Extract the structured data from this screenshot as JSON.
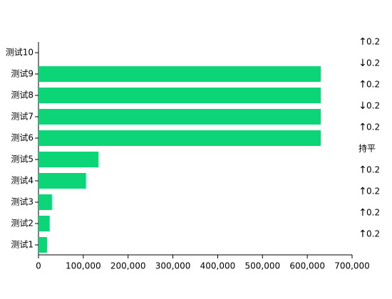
{
  "chart_data": {
    "type": "barh",
    "categories": [
      "测试1",
      "测试2",
      "测试3",
      "测试4",
      "测试5",
      "测试6",
      "测试7",
      "测试8",
      "测试9",
      "测试10"
    ],
    "values": [
      19000,
      25000,
      30000,
      106000,
      134000,
      630000,
      630000,
      630000,
      630000,
      0
    ],
    "color": "#0bd577",
    "xlim": [
      0,
      700000
    ],
    "xticks": [
      0,
      {
        "value": 100000,
        "label": "100,000"
      },
      {
        "value": 200000,
        "label": "200,000"
      },
      {
        "value": 300000,
        "label": "300,000"
      },
      {
        "value": 400000,
        "label": "400,000"
      },
      {
        "value": 500000,
        "label": "500,000"
      },
      {
        "value": 600000,
        "label": "600,000"
      },
      {
        "value": 700000,
        "label": "700,000"
      }
    ],
    "annotations": [
      {
        "arrow": "↑",
        "text": "0.2",
        "arrow_color": "#ff0000"
      },
      {
        "arrow": "↓",
        "text": "0.2",
        "arrow_color": "#ff0000"
      },
      {
        "arrow": "↑",
        "text": "0.2",
        "arrow_color": "#ff0000"
      },
      {
        "arrow": "↓",
        "text": "0.2",
        "arrow_color": "#ff0000"
      },
      {
        "arrow": "↑",
        "text": "0.2",
        "arrow_color": "#ff0000"
      },
      {
        "text": "持平"
      },
      {
        "arrow": "↑",
        "text": "0.2",
        "arrow_color": "#ff0000"
      },
      {
        "arrow": "↑",
        "text": "0.2",
        "arrow_color": "#ff0000"
      },
      {
        "arrow": "↑",
        "text": "0.2",
        "arrow_color": "#ff0000"
      },
      {
        "arrow": "↑",
        "text": "0.2",
        "arrow_color": "#ff0000"
      }
    ]
  }
}
